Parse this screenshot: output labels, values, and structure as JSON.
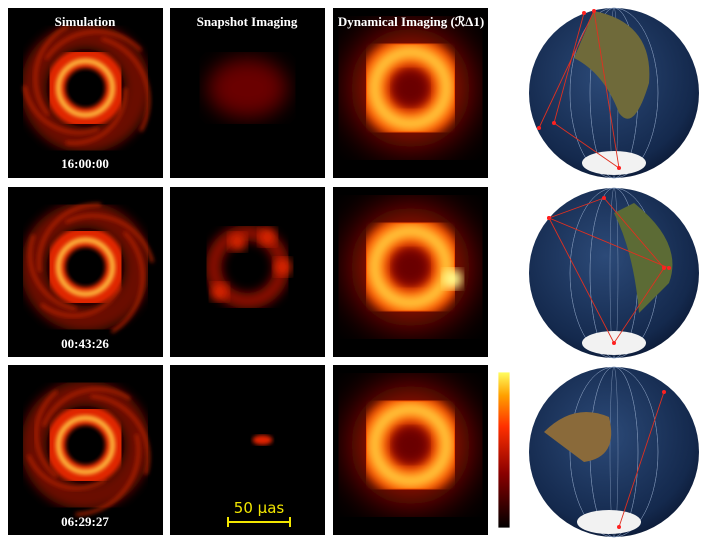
{
  "columns": [
    "Simulation",
    "Snapshot Imaging",
    "Dynamical Imaging (ℛΔ1)"
  ],
  "rows": [
    {
      "time": "16:00:00"
    },
    {
      "time": "00:43:26"
    },
    {
      "time": "06:29:27"
    }
  ],
  "scale_bar": "50 μas"
}
